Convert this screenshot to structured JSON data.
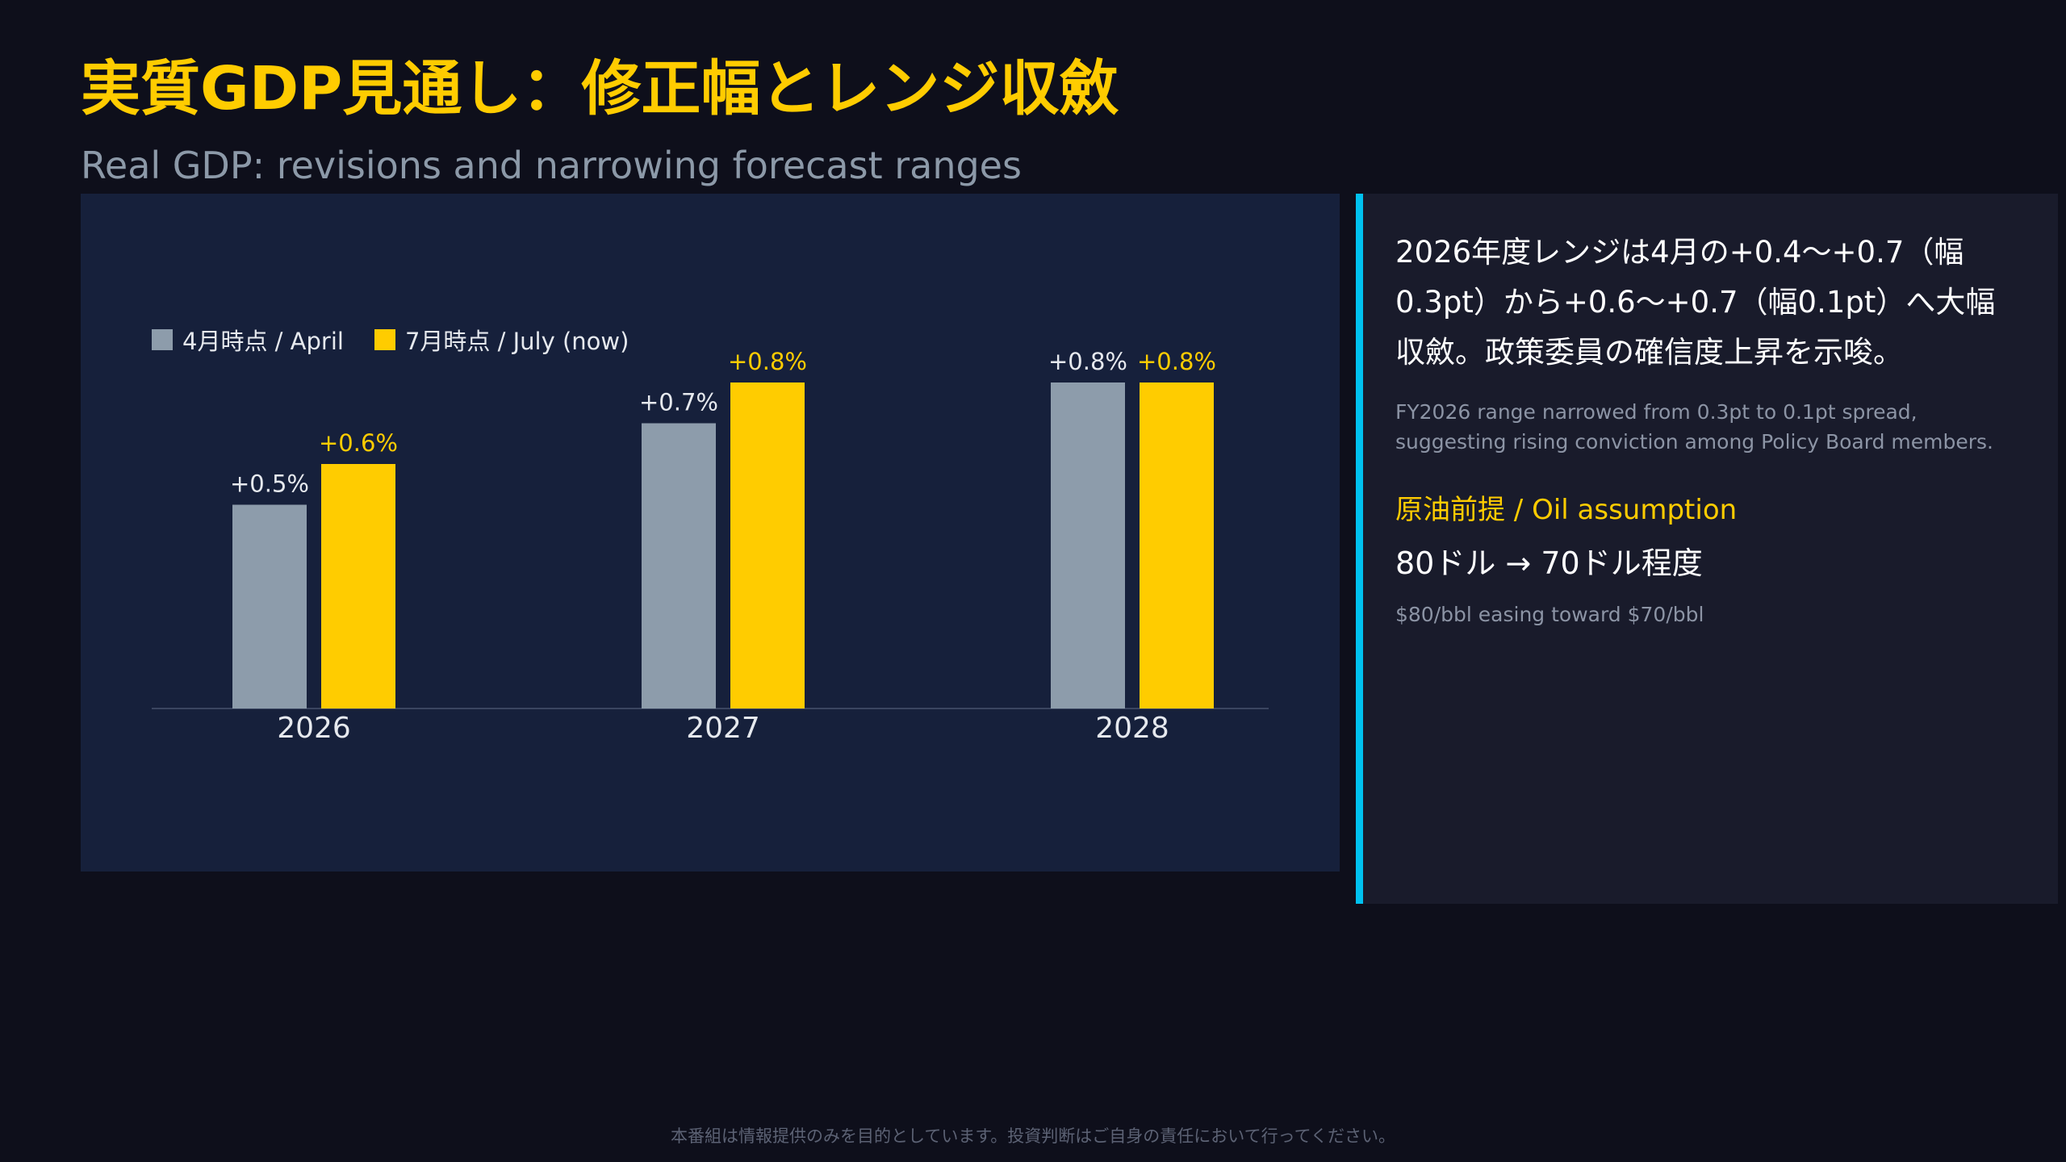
{
  "header": {
    "title": "実質GDP見通し：修正幅とレンジ収斂",
    "subtitle": "Real GDP: revisions and narrowing forecast ranges"
  },
  "chart_data": {
    "type": "bar",
    "categories": [
      "2026",
      "2027",
      "2028"
    ],
    "series": [
      {
        "name": "4月時点 / April",
        "values": [
          0.5,
          0.7,
          0.8
        ],
        "labels": [
          "+0.5%",
          "+0.7%",
          "+0.8%"
        ],
        "color": "#8d9cab",
        "label_color": "#e6e9ee"
      },
      {
        "name": "7月時点 / July (now)",
        "values": [
          0.6,
          0.8,
          0.8
        ],
        "labels": [
          "+0.6%",
          "+0.8%",
          "+0.8%"
        ],
        "color": "#ffcc00",
        "label_color": "#ffcc00"
      }
    ],
    "ylim": [
      0,
      0.8
    ],
    "grid": false,
    "legend": "top-left"
  },
  "side": {
    "note_ja": "2026年度レンジは4月の+0.4〜+0.7（幅0.3pt）から+0.6〜+0.7（幅0.1pt）へ大幅収斂。政策委員の確信度上昇を示唆。",
    "note_en": "FY2026 range narrowed from 0.3pt to 0.1pt spread, suggesting rising conviction among Policy Board members.",
    "oil_label": "原油前提 / Oil assumption",
    "oil_value": "80ドル → 70ドル程度",
    "oil_sub": "$80/bbl easing toward $70/bbl"
  },
  "footer": {
    "disclaimer": "本番組は情報提供のみを目的としています。投資判断はご自身の責任において行ってください。"
  },
  "colors": {
    "accent": "#ffcc00",
    "april": "#8d9cab",
    "side_border": "#00c2f0"
  }
}
